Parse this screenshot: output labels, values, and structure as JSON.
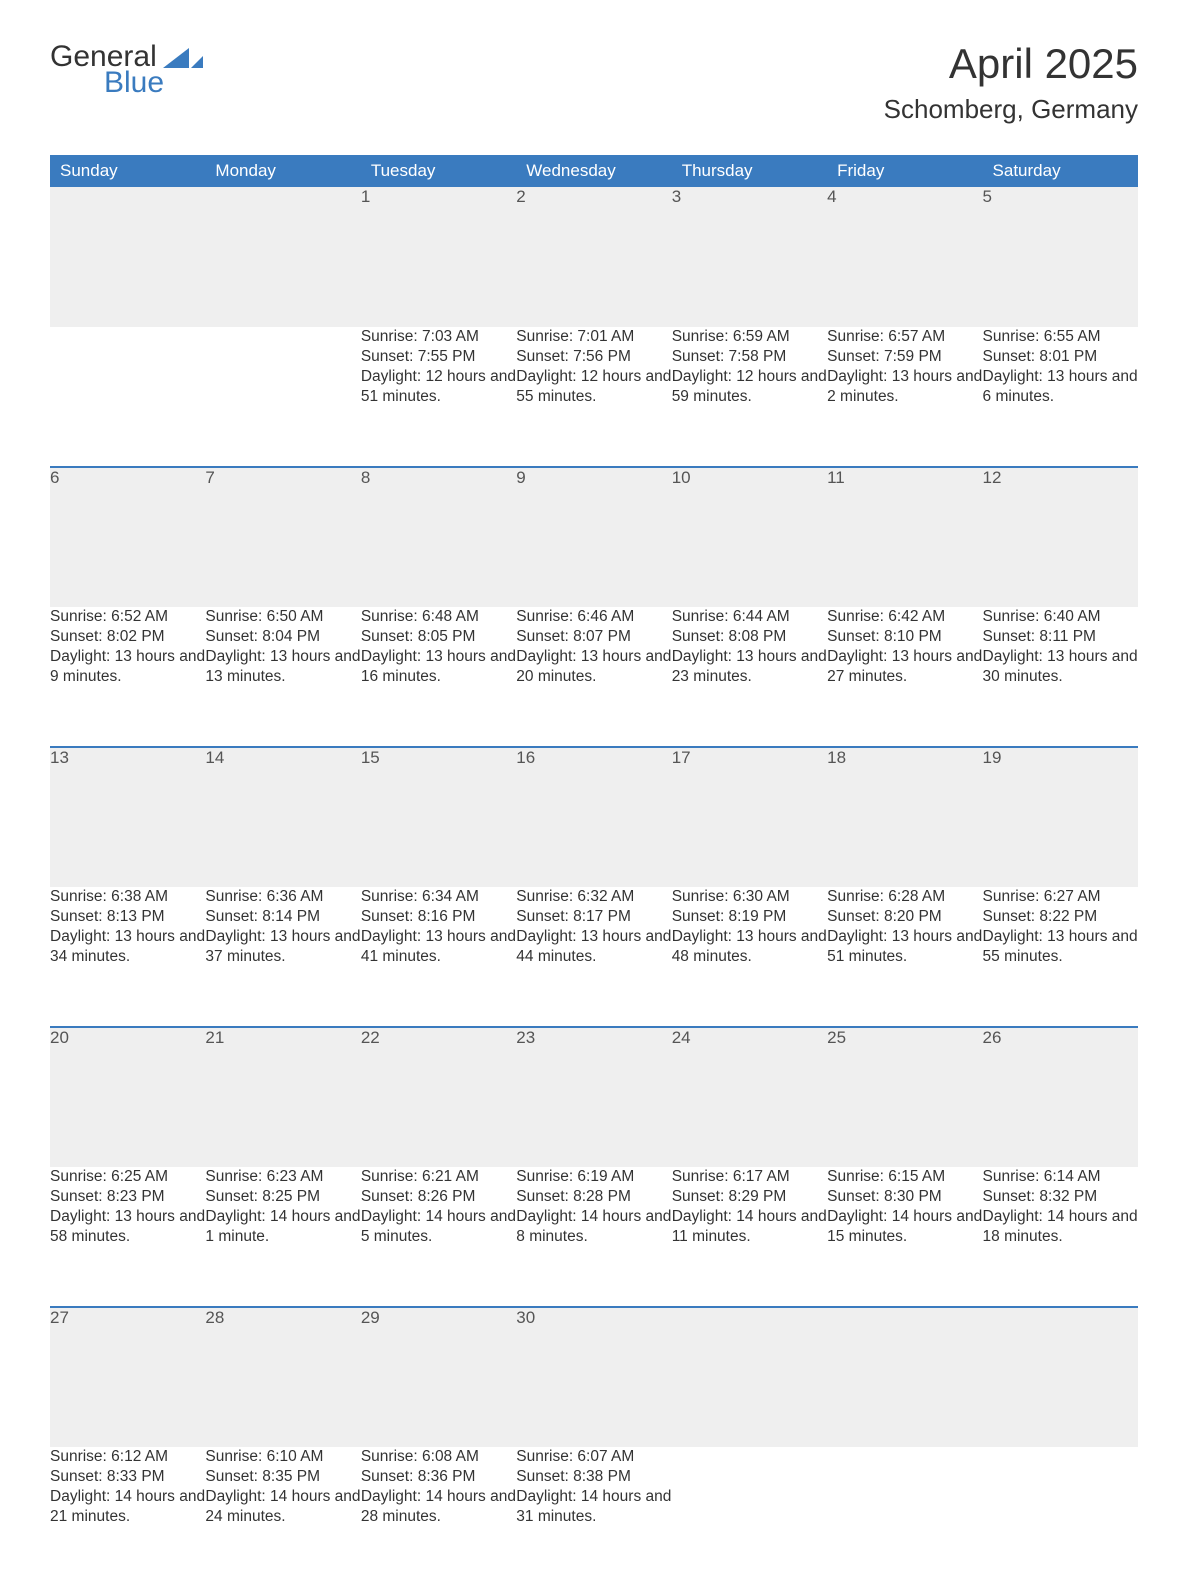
{
  "logo": {
    "word1": "General",
    "word2": "Blue"
  },
  "title": "April 2025",
  "location": "Schomberg, Germany",
  "colors": {
    "header_bg": "#3a7bbf",
    "header_text": "#ffffff",
    "daynum_bg": "#efefef",
    "row_border": "#3a7bbf",
    "body_text": "#333333",
    "page_bg": "#ffffff",
    "logo_accent": "#3a7bbf"
  },
  "typography": {
    "title_fontsize": 42,
    "location_fontsize": 26,
    "header_fontsize": 17,
    "daynum_fontsize": 17,
    "cell_fontsize": 15.5,
    "font_family": "Arial"
  },
  "layout": {
    "columns": 7,
    "weeks": 5,
    "first_day_column_index": 2
  },
  "labels": {
    "sunrise_prefix": "Sunrise: ",
    "sunset_prefix": "Sunset: ",
    "daylight_prefix": "Daylight: "
  },
  "days_of_week": [
    "Sunday",
    "Monday",
    "Tuesday",
    "Wednesday",
    "Thursday",
    "Friday",
    "Saturday"
  ],
  "weeks": [
    [
      null,
      null,
      {
        "n": "1",
        "sunrise": "7:03 AM",
        "sunset": "7:55 PM",
        "daylight": "12 hours and 51 minutes."
      },
      {
        "n": "2",
        "sunrise": "7:01 AM",
        "sunset": "7:56 PM",
        "daylight": "12 hours and 55 minutes."
      },
      {
        "n": "3",
        "sunrise": "6:59 AM",
        "sunset": "7:58 PM",
        "daylight": "12 hours and 59 minutes."
      },
      {
        "n": "4",
        "sunrise": "6:57 AM",
        "sunset": "7:59 PM",
        "daylight": "13 hours and 2 minutes."
      },
      {
        "n": "5",
        "sunrise": "6:55 AM",
        "sunset": "8:01 PM",
        "daylight": "13 hours and 6 minutes."
      }
    ],
    [
      {
        "n": "6",
        "sunrise": "6:52 AM",
        "sunset": "8:02 PM",
        "daylight": "13 hours and 9 minutes."
      },
      {
        "n": "7",
        "sunrise": "6:50 AM",
        "sunset": "8:04 PM",
        "daylight": "13 hours and 13 minutes."
      },
      {
        "n": "8",
        "sunrise": "6:48 AM",
        "sunset": "8:05 PM",
        "daylight": "13 hours and 16 minutes."
      },
      {
        "n": "9",
        "sunrise": "6:46 AM",
        "sunset": "8:07 PM",
        "daylight": "13 hours and 20 minutes."
      },
      {
        "n": "10",
        "sunrise": "6:44 AM",
        "sunset": "8:08 PM",
        "daylight": "13 hours and 23 minutes."
      },
      {
        "n": "11",
        "sunrise": "6:42 AM",
        "sunset": "8:10 PM",
        "daylight": "13 hours and 27 minutes."
      },
      {
        "n": "12",
        "sunrise": "6:40 AM",
        "sunset": "8:11 PM",
        "daylight": "13 hours and 30 minutes."
      }
    ],
    [
      {
        "n": "13",
        "sunrise": "6:38 AM",
        "sunset": "8:13 PM",
        "daylight": "13 hours and 34 minutes."
      },
      {
        "n": "14",
        "sunrise": "6:36 AM",
        "sunset": "8:14 PM",
        "daylight": "13 hours and 37 minutes."
      },
      {
        "n": "15",
        "sunrise": "6:34 AM",
        "sunset": "8:16 PM",
        "daylight": "13 hours and 41 minutes."
      },
      {
        "n": "16",
        "sunrise": "6:32 AM",
        "sunset": "8:17 PM",
        "daylight": "13 hours and 44 minutes."
      },
      {
        "n": "17",
        "sunrise": "6:30 AM",
        "sunset": "8:19 PM",
        "daylight": "13 hours and 48 minutes."
      },
      {
        "n": "18",
        "sunrise": "6:28 AM",
        "sunset": "8:20 PM",
        "daylight": "13 hours and 51 minutes."
      },
      {
        "n": "19",
        "sunrise": "6:27 AM",
        "sunset": "8:22 PM",
        "daylight": "13 hours and 55 minutes."
      }
    ],
    [
      {
        "n": "20",
        "sunrise": "6:25 AM",
        "sunset": "8:23 PM",
        "daylight": "13 hours and 58 minutes."
      },
      {
        "n": "21",
        "sunrise": "6:23 AM",
        "sunset": "8:25 PM",
        "daylight": "14 hours and 1 minute."
      },
      {
        "n": "22",
        "sunrise": "6:21 AM",
        "sunset": "8:26 PM",
        "daylight": "14 hours and 5 minutes."
      },
      {
        "n": "23",
        "sunrise": "6:19 AM",
        "sunset": "8:28 PM",
        "daylight": "14 hours and 8 minutes."
      },
      {
        "n": "24",
        "sunrise": "6:17 AM",
        "sunset": "8:29 PM",
        "daylight": "14 hours and 11 minutes."
      },
      {
        "n": "25",
        "sunrise": "6:15 AM",
        "sunset": "8:30 PM",
        "daylight": "14 hours and 15 minutes."
      },
      {
        "n": "26",
        "sunrise": "6:14 AM",
        "sunset": "8:32 PM",
        "daylight": "14 hours and 18 minutes."
      }
    ],
    [
      {
        "n": "27",
        "sunrise": "6:12 AM",
        "sunset": "8:33 PM",
        "daylight": "14 hours and 21 minutes."
      },
      {
        "n": "28",
        "sunrise": "6:10 AM",
        "sunset": "8:35 PM",
        "daylight": "14 hours and 24 minutes."
      },
      {
        "n": "29",
        "sunrise": "6:08 AM",
        "sunset": "8:36 PM",
        "daylight": "14 hours and 28 minutes."
      },
      {
        "n": "30",
        "sunrise": "6:07 AM",
        "sunset": "8:38 PM",
        "daylight": "14 hours and 31 minutes."
      },
      null,
      null,
      null
    ]
  ]
}
